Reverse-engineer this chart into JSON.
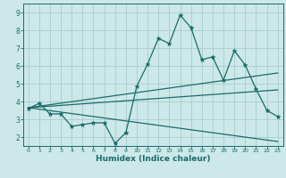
{
  "xlabel": "Humidex (Indice chaleur)",
  "xlim": [
    -0.5,
    23.5
  ],
  "ylim": [
    1.5,
    9.5
  ],
  "xticks": [
    0,
    1,
    2,
    3,
    4,
    5,
    6,
    7,
    8,
    9,
    10,
    11,
    12,
    13,
    14,
    15,
    16,
    17,
    18,
    19,
    20,
    21,
    22,
    23
  ],
  "yticks": [
    2,
    3,
    4,
    5,
    6,
    7,
    8,
    9
  ],
  "bg_color": "#cce8e8",
  "grid_color": "#aacccc",
  "line_color": "#1a6b6b",
  "line1_x": [
    0,
    1,
    2,
    3,
    4,
    5,
    6,
    7,
    8,
    9,
    10,
    11,
    12,
    13,
    14,
    15,
    16,
    17,
    18,
    19,
    20,
    21,
    22,
    23
  ],
  "line1_y": [
    3.6,
    3.9,
    3.3,
    3.3,
    2.6,
    2.7,
    2.8,
    2.8,
    1.65,
    2.25,
    4.85,
    6.1,
    7.55,
    7.25,
    8.85,
    8.15,
    6.35,
    6.5,
    5.2,
    6.85,
    6.05,
    4.7,
    3.5,
    3.15
  ],
  "line2_x": [
    0,
    23
  ],
  "line2_y": [
    3.65,
    5.6
  ],
  "line3_x": [
    0,
    23
  ],
  "line3_y": [
    3.65,
    4.65
  ],
  "line4_x": [
    0,
    23
  ],
  "line4_y": [
    3.65,
    1.75
  ]
}
